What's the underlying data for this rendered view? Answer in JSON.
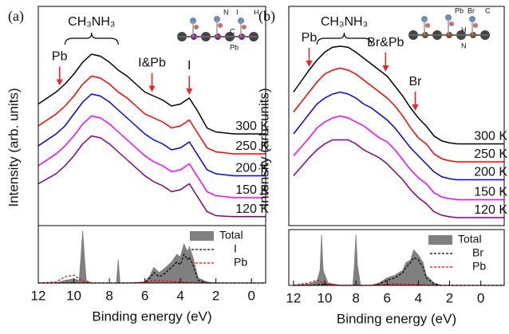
{
  "chart_data": [
    {
      "type": "line",
      "panel_label": "(a)",
      "ylabel": "Intensity (arb. units)",
      "xlim": [
        12,
        -0.8
      ],
      "ylim": [
        0,
        11
      ],
      "x": [
        12,
        11,
        10.5,
        10,
        9.5,
        9,
        8.5,
        8,
        7.5,
        7,
        6.5,
        6,
        5.5,
        5,
        4.5,
        4,
        3.5,
        3,
        2.5,
        2,
        1.5,
        1,
        0,
        -0.8
      ],
      "series": [
        {
          "name": "300 K",
          "color": "#000000",
          "values": [
            6.1,
            6.7,
            7.1,
            7.6,
            8.2,
            8.6,
            8.5,
            8.2,
            7.8,
            7.5,
            7.1,
            6.7,
            6.5,
            6.3,
            6.0,
            6.1,
            6.4,
            5.7,
            4.9,
            4.7,
            4.65,
            4.6,
            4.6,
            4.6
          ]
        },
        {
          "name": "250 K",
          "color": "#ff0000",
          "values": [
            5.0,
            5.6,
            6.0,
            6.5,
            7.1,
            7.5,
            7.4,
            7.1,
            6.7,
            6.4,
            6.0,
            5.6,
            5.4,
            5.2,
            4.9,
            5.0,
            5.3,
            4.6,
            3.9,
            3.7,
            3.65,
            3.6,
            3.6,
            3.6
          ]
        },
        {
          "name": "200 K",
          "color": "#0000ff",
          "values": [
            4.0,
            4.6,
            5.0,
            5.6,
            6.2,
            6.6,
            6.5,
            6.2,
            5.8,
            5.4,
            5.0,
            4.6,
            4.3,
            4.1,
            3.8,
            3.9,
            4.2,
            3.5,
            2.8,
            2.6,
            2.55,
            2.5,
            2.5,
            2.5
          ]
        },
        {
          "name": "150 K",
          "color": "#ff00ff",
          "values": [
            3.0,
            3.6,
            4.0,
            4.5,
            5.1,
            5.5,
            5.4,
            5.1,
            4.7,
            4.3,
            3.9,
            3.5,
            3.2,
            3.0,
            2.7,
            2.8,
            3.1,
            2.4,
            1.7,
            1.5,
            1.45,
            1.4,
            1.4,
            1.4
          ]
        },
        {
          "name": "120 K",
          "color": "#800080",
          "values": [
            2.1,
            2.6,
            3.0,
            3.5,
            4.1,
            4.5,
            4.4,
            4.1,
            3.7,
            3.3,
            2.9,
            2.5,
            2.2,
            2.0,
            1.7,
            1.8,
            2.1,
            1.4,
            0.7,
            0.5,
            0.47,
            0.45,
            0.45,
            0.45
          ]
        }
      ],
      "annotations": [
        {
          "text": "Pb",
          "x": 10.8
        },
        {
          "text": "I&Pb",
          "x": 5.6
        },
        {
          "text": "I",
          "x": 3.5
        }
      ],
      "brace": {
        "text": "CH₃NH₃",
        "x": [
          10.5,
          7.5
        ]
      },
      "inset_labels": [
        "N",
        "I",
        "H",
        "C",
        "Pb"
      ]
    },
    {
      "type": "line",
      "xlabel": "Binding energy (eV)",
      "xlim": [
        12,
        -0.8
      ],
      "ylim": [
        0,
        1.1
      ],
      "xticks": [
        12,
        10,
        8,
        6,
        4,
        2,
        0
      ],
      "legend": "upper right",
      "x": [
        12,
        11,
        10.5,
        10,
        9.7,
        9.6,
        9.5,
        9.4,
        9.3,
        9,
        8,
        7.6,
        7.5,
        7.4,
        7,
        6,
        5.7,
        5.5,
        5.2,
        5,
        4.5,
        4.2,
        4,
        3.8,
        3.6,
        3.5,
        3.3,
        3,
        2.5,
        2,
        1,
        0,
        -0.8
      ],
      "series": [
        {
          "name": "Total",
          "color": "#808080",
          "fill": true,
          "values": [
            0,
            0,
            0.05,
            0.08,
            0.05,
            0.5,
            1.0,
            0.5,
            0.05,
            0,
            0,
            0,
            0.45,
            0,
            0,
            0.02,
            0.15,
            0.3,
            0.2,
            0.25,
            0.4,
            0.55,
            0.5,
            0.75,
            0.6,
            0.7,
            0.5,
            0.1,
            0.02,
            0,
            0,
            0,
            0
          ]
        },
        {
          "name": "I",
          "color": "#000000",
          "dash": true,
          "values": [
            0,
            0,
            0,
            0,
            0,
            0,
            0,
            0,
            0,
            0,
            0,
            0,
            0,
            0,
            0,
            0.01,
            0.1,
            0.2,
            0.12,
            0.15,
            0.3,
            0.4,
            0.35,
            0.55,
            0.45,
            0.5,
            0.35,
            0.05,
            0,
            0,
            0,
            0,
            0
          ]
        },
        {
          "name": "Pb",
          "color": "#ff0000",
          "dash": true,
          "values": [
            0,
            0.02,
            0.12,
            0.15,
            0.08,
            0.05,
            0.05,
            0.03,
            0.02,
            0,
            0,
            0,
            0,
            0,
            0,
            0.01,
            0.03,
            0.05,
            0.04,
            0.04,
            0.03,
            0.02,
            0.02,
            0.02,
            0.01,
            0.01,
            0.01,
            0,
            0,
            0,
            0,
            0,
            0
          ]
        }
      ]
    },
    {
      "type": "line",
      "panel_label": "(b)",
      "ylabel": "Intensity (arb. units)",
      "xlim": [
        12.3,
        -1.5
      ],
      "ylim": [
        0,
        11
      ],
      "x": [
        12,
        11,
        10.5,
        10,
        9.5,
        9,
        8.5,
        8,
        7.5,
        7,
        6.5,
        6,
        5.5,
        5,
        4.5,
        4,
        3.5,
        3,
        2.5,
        2,
        1.5,
        1,
        0,
        -1.5
      ],
      "series": [
        {
          "name": "300 K",
          "color": "#000000",
          "values": [
            6.7,
            7.8,
            8.3,
            8.7,
            8.95,
            9.0,
            8.95,
            8.7,
            8.4,
            8.1,
            7.8,
            7.5,
            7.0,
            6.5,
            5.9,
            5.4,
            5.0,
            4.5,
            4.25,
            4.15,
            4.1,
            4.1,
            4.1,
            4.1
          ]
        },
        {
          "name": "250 K",
          "color": "#ff0000",
          "values": [
            5.7,
            6.7,
            7.2,
            7.6,
            7.8,
            7.9,
            7.8,
            7.6,
            7.3,
            7.0,
            6.7,
            6.4,
            6.0,
            5.5,
            4.9,
            4.4,
            4.1,
            3.6,
            3.35,
            3.25,
            3.2,
            3.2,
            3.2,
            3.2
          ]
        },
        {
          "name": "200 K",
          "color": "#0000ff",
          "values": [
            4.6,
            5.6,
            6.1,
            6.4,
            6.6,
            6.7,
            6.6,
            6.4,
            6.1,
            5.9,
            5.6,
            5.3,
            4.9,
            4.4,
            3.9,
            3.5,
            3.1,
            2.7,
            2.45,
            2.35,
            2.3,
            2.3,
            2.3,
            2.3
          ]
        },
        {
          "name": "150 K",
          "color": "#ff00ff",
          "values": [
            3.5,
            4.4,
            4.9,
            5.2,
            5.4,
            5.5,
            5.4,
            5.2,
            5.0,
            4.7,
            4.4,
            4.2,
            3.8,
            3.3,
            2.8,
            2.4,
            2.1,
            1.65,
            1.43,
            1.35,
            1.3,
            1.3,
            1.3,
            1.3
          ]
        },
        {
          "name": "120 K",
          "color": "#800080",
          "values": [
            2.5,
            3.4,
            3.8,
            4.1,
            4.3,
            4.3,
            4.3,
            4.1,
            3.8,
            3.6,
            3.4,
            3.1,
            2.7,
            2.3,
            1.8,
            1.4,
            1.1,
            0.7,
            0.52,
            0.44,
            0.4,
            0.4,
            0.4,
            0.4
          ]
        }
      ],
      "annotations": [
        {
          "text": "Pb",
          "x": 11
        },
        {
          "text": "Br&Pb",
          "x": 6.1
        },
        {
          "text": "Br",
          "x": 4.2
        }
      ],
      "brace": {
        "text": "CH₃NH₃",
        "x": [
          10.5,
          7
        ]
      },
      "inset_labels": [
        "Pb",
        "Br",
        "C",
        "H",
        "N"
      ]
    },
    {
      "type": "line",
      "xlabel": "Binding energy (eV)",
      "xlim": [
        12.3,
        -1.5
      ],
      "ylim": [
        0,
        1.1
      ],
      "xticks": [
        12,
        10,
        8,
        6,
        4,
        2,
        0
      ],
      "legend": "upper right",
      "x": [
        12,
        11,
        10.5,
        10.3,
        10.2,
        10.1,
        9.8,
        9,
        8.2,
        8.1,
        8.0,
        7.9,
        7.7,
        7,
        6.5,
        6,
        5.5,
        5,
        4.8,
        4.5,
        4.3,
        4,
        3.7,
        3.5,
        3,
        2.5,
        2,
        1,
        0,
        -1.5
      ],
      "series": [
        {
          "name": "Total",
          "color": "#808080",
          "fill": true,
          "values": [
            0,
            0.03,
            0.08,
            0.3,
            1.0,
            0.3,
            0.05,
            0,
            0,
            0.4,
            1.0,
            0.4,
            0,
            0,
            0.05,
            0.15,
            0.2,
            0.3,
            0.45,
            0.5,
            0.7,
            0.6,
            0.45,
            0.2,
            0.05,
            0,
            0,
            0,
            0,
            0
          ]
        },
        {
          "name": "Br",
          "color": "#000000",
          "dash": true,
          "values": [
            0,
            0,
            0.01,
            0.02,
            0.02,
            0.02,
            0.01,
            0,
            0,
            0,
            0,
            0,
            0,
            0,
            0.03,
            0.1,
            0.15,
            0.25,
            0.35,
            0.45,
            0.55,
            0.5,
            0.35,
            0.15,
            0.03,
            0,
            0,
            0,
            0,
            0
          ]
        },
        {
          "name": "Pb",
          "color": "#ff0000",
          "dash": true,
          "values": [
            0,
            0.05,
            0.1,
            0.08,
            0.06,
            0.05,
            0.03,
            0,
            0,
            0,
            0,
            0,
            0,
            0,
            0.01,
            0.02,
            0.03,
            0.03,
            0.02,
            0.02,
            0.02,
            0.01,
            0.01,
            0,
            0,
            0,
            0,
            0,
            0,
            0
          ]
        }
      ]
    }
  ]
}
